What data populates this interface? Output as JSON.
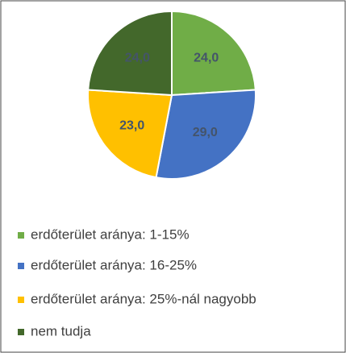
{
  "chart_data": {
    "type": "pie",
    "categories": [
      "erdőterület aránya: 1-15%",
      "erdőterület aránya: 16-25%",
      "erdőterület aránya: 25%-nál nagyobb",
      "nem tudja"
    ],
    "values": [
      24,
      29,
      23,
      24
    ],
    "value_labels": [
      "24,0",
      "29,0",
      "23,0",
      "24,0"
    ],
    "colors": [
      "#70ad47",
      "#4472c4",
      "#ffc000",
      "#43682b"
    ],
    "legend": "bottom"
  }
}
